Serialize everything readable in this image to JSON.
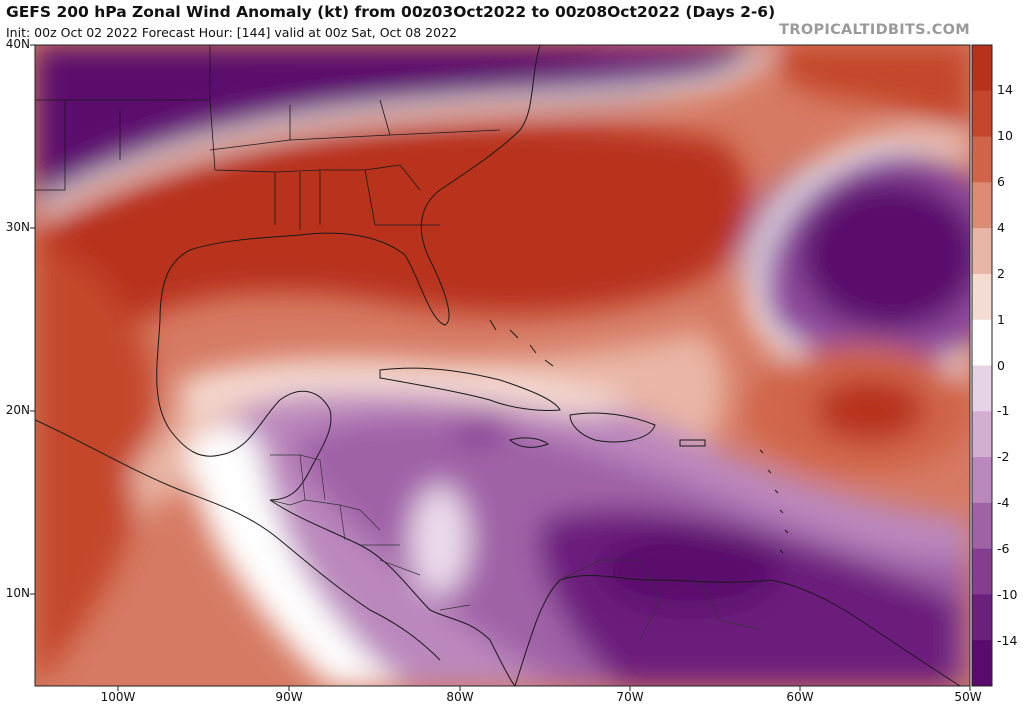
{
  "header": {
    "title": "GEFS 200 hPa Zonal Wind Anomaly (kt) from 00z03Oct2022 to 00z08Oct2022 (Days 2-6)",
    "subtitle": "Init: 00z Oct 02 2022   Forecast Hour: [144]   valid at 00z Sat, Oct 08 2022",
    "brand": "TROPICALTIDBITS.COM"
  },
  "axes": {
    "lat_labels": [
      "40N",
      "30N",
      "20N",
      "10N"
    ],
    "lon_labels": [
      "100W",
      "90W",
      "80W",
      "70W",
      "60W",
      "50W"
    ]
  },
  "colorbar": {
    "labels": [
      "14",
      "10",
      "6",
      "4",
      "2",
      "1",
      "0",
      "-1",
      "-2",
      "-4",
      "-6",
      "-10",
      "-14"
    ],
    "colors": [
      "#b8321a",
      "#c4472b",
      "#d0654a",
      "#dc8c74",
      "#e9b5a4",
      "#f5dcd3",
      "#ffffff",
      "#e8d3e6",
      "#d3aed2",
      "#bb88bd",
      "#a062a7",
      "#853d92",
      "#6c1f7d",
      "#5a0a6c"
    ]
  },
  "colors": {
    "pos_strong": "#b8321a",
    "neg_strong": "#5a0a6c"
  }
}
